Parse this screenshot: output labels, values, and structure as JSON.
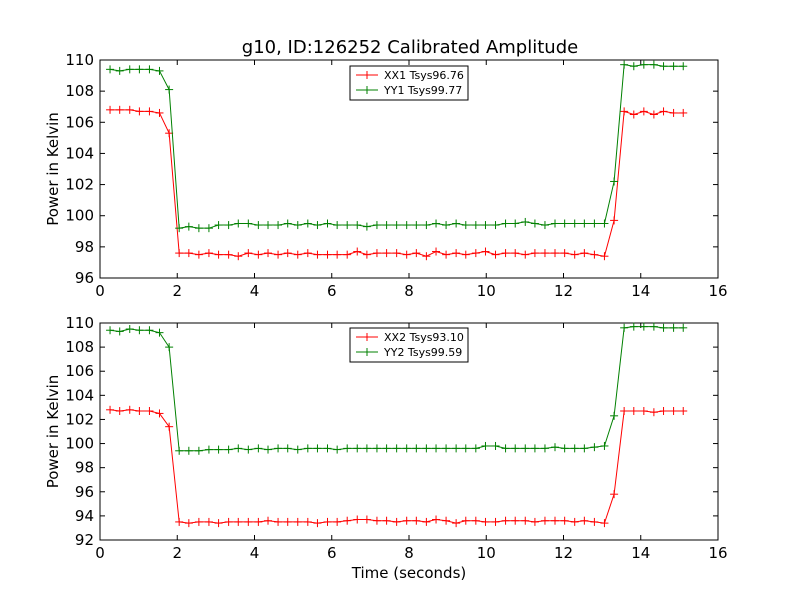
{
  "title": "g10, ID:126252 Calibrated Amplitude",
  "chart_data": [
    {
      "type": "line",
      "xlabel": "",
      "ylabel": "Power in Kelvin",
      "xlim": [
        0,
        16
      ],
      "ylim": [
        96,
        110
      ],
      "xticks": [
        0,
        2,
        4,
        6,
        8,
        10,
        12,
        14,
        16
      ],
      "yticks": [
        96,
        98,
        100,
        102,
        104,
        106,
        108,
        110
      ],
      "legend_position": "upper-center",
      "grid": false,
      "x": [
        0.26,
        0.51,
        0.77,
        1.02,
        1.28,
        1.54,
        1.79,
        2.05,
        2.3,
        2.56,
        2.82,
        3.07,
        3.33,
        3.58,
        3.84,
        4.1,
        4.35,
        4.61,
        4.86,
        5.12,
        5.38,
        5.63,
        5.89,
        6.14,
        6.4,
        6.66,
        6.91,
        7.17,
        7.42,
        7.68,
        7.94,
        8.19,
        8.45,
        8.7,
        8.96,
        9.22,
        9.47,
        9.73,
        9.98,
        10.24,
        10.5,
        10.75,
        11.01,
        11.26,
        11.52,
        11.78,
        12.03,
        12.29,
        12.54,
        12.8,
        13.06,
        13.31,
        13.57,
        13.82,
        14.08,
        14.34,
        14.59,
        14.85,
        15.1
      ],
      "series": [
        {
          "name": "XX1 Tsys96.76",
          "color": "#ff0000",
          "values": [
            106.8,
            106.8,
            106.8,
            106.7,
            106.7,
            106.6,
            105.3,
            97.6,
            97.6,
            97.5,
            97.6,
            97.5,
            97.5,
            97.4,
            97.6,
            97.5,
            97.6,
            97.5,
            97.6,
            97.5,
            97.6,
            97.5,
            97.5,
            97.5,
            97.5,
            97.7,
            97.5,
            97.6,
            97.6,
            97.6,
            97.5,
            97.6,
            97.4,
            97.7,
            97.5,
            97.6,
            97.5,
            97.6,
            97.7,
            97.5,
            97.6,
            97.6,
            97.5,
            97.6,
            97.6,
            97.6,
            97.6,
            97.5,
            97.6,
            97.5,
            97.4,
            99.7,
            106.7,
            106.5,
            106.7,
            106.5,
            106.7,
            106.6,
            106.6
          ]
        },
        {
          "name": "YY1 Tsys99.77",
          "color": "#008000",
          "values": [
            109.4,
            109.3,
            109.4,
            109.4,
            109.4,
            109.3,
            108.1,
            99.2,
            99.3,
            99.2,
            99.2,
            99.4,
            99.4,
            99.5,
            99.5,
            99.4,
            99.4,
            99.4,
            99.5,
            99.4,
            99.5,
            99.4,
            99.5,
            99.4,
            99.4,
            99.4,
            99.3,
            99.4,
            99.4,
            99.4,
            99.4,
            99.4,
            99.4,
            99.5,
            99.4,
            99.5,
            99.4,
            99.4,
            99.4,
            99.4,
            99.5,
            99.5,
            99.6,
            99.5,
            99.4,
            99.5,
            99.5,
            99.5,
            99.5,
            99.5,
            99.5,
            102.2,
            109.7,
            109.6,
            109.7,
            109.7,
            109.6,
            109.6,
            109.6
          ]
        }
      ]
    },
    {
      "type": "line",
      "xlabel": "Time (seconds)",
      "ylabel": "Power in Kelvin",
      "xlim": [
        0,
        16
      ],
      "ylim": [
        92,
        110
      ],
      "xticks": [
        0,
        2,
        4,
        6,
        8,
        10,
        12,
        14,
        16
      ],
      "yticks": [
        92,
        94,
        96,
        98,
        100,
        102,
        104,
        106,
        108,
        110
      ],
      "legend_position": "upper-center",
      "grid": false,
      "x": [
        0.26,
        0.51,
        0.77,
        1.02,
        1.28,
        1.54,
        1.79,
        2.05,
        2.3,
        2.56,
        2.82,
        3.07,
        3.33,
        3.58,
        3.84,
        4.1,
        4.35,
        4.61,
        4.86,
        5.12,
        5.38,
        5.63,
        5.89,
        6.14,
        6.4,
        6.66,
        6.91,
        7.17,
        7.42,
        7.68,
        7.94,
        8.19,
        8.45,
        8.7,
        8.96,
        9.22,
        9.47,
        9.73,
        9.98,
        10.24,
        10.5,
        10.75,
        11.01,
        11.26,
        11.52,
        11.78,
        12.03,
        12.29,
        12.54,
        12.8,
        13.06,
        13.31,
        13.57,
        13.82,
        14.08,
        14.34,
        14.59,
        14.85,
        15.1
      ],
      "series": [
        {
          "name": "XX2 Tsys93.10",
          "color": "#ff0000",
          "values": [
            102.8,
            102.7,
            102.8,
            102.7,
            102.7,
            102.5,
            101.4,
            93.5,
            93.4,
            93.5,
            93.5,
            93.4,
            93.5,
            93.5,
            93.5,
            93.5,
            93.6,
            93.5,
            93.5,
            93.5,
            93.5,
            93.4,
            93.5,
            93.5,
            93.6,
            93.7,
            93.7,
            93.6,
            93.6,
            93.5,
            93.6,
            93.6,
            93.5,
            93.7,
            93.6,
            93.4,
            93.6,
            93.6,
            93.5,
            93.5,
            93.6,
            93.6,
            93.6,
            93.5,
            93.6,
            93.6,
            93.6,
            93.5,
            93.6,
            93.5,
            93.4,
            95.8,
            102.7,
            102.7,
            102.7,
            102.6,
            102.7,
            102.7,
            102.7
          ]
        },
        {
          "name": "YY2 Tsys99.59",
          "color": "#008000",
          "values": [
            109.4,
            109.3,
            109.5,
            109.4,
            109.4,
            109.2,
            108.0,
            99.4,
            99.4,
            99.4,
            99.5,
            99.5,
            99.5,
            99.6,
            99.5,
            99.6,
            99.5,
            99.6,
            99.6,
            99.5,
            99.6,
            99.6,
            99.6,
            99.5,
            99.6,
            99.6,
            99.6,
            99.6,
            99.6,
            99.6,
            99.6,
            99.6,
            99.6,
            99.6,
            99.6,
            99.6,
            99.6,
            99.6,
            99.8,
            99.8,
            99.6,
            99.6,
            99.6,
            99.6,
            99.6,
            99.7,
            99.6,
            99.6,
            99.6,
            99.7,
            99.8,
            102.3,
            109.6,
            109.7,
            109.7,
            109.7,
            109.6,
            109.6,
            109.6
          ]
        }
      ]
    }
  ]
}
